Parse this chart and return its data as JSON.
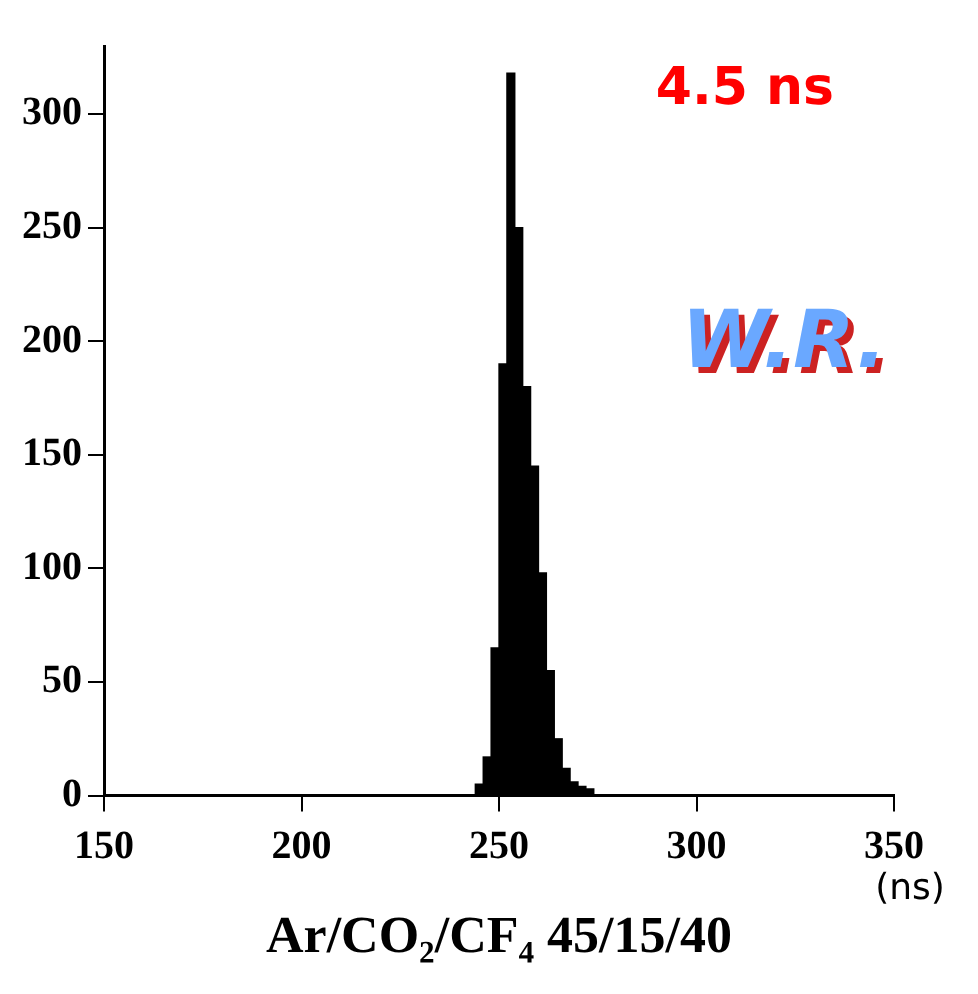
{
  "chart_data": {
    "type": "histogram",
    "xlabel": "Ar/CO₂/CF₄ 45/15/40",
    "annotations": [
      "4.5 ns",
      "W.R.",
      "(ns)"
    ],
    "bins": [
      244,
      246,
      248,
      250,
      252,
      254,
      256,
      258,
      260,
      262,
      264,
      266,
      268,
      270,
      272,
      274
    ],
    "values": [
      5,
      17,
      65,
      190,
      318,
      250,
      180,
      145,
      98,
      55,
      25,
      12,
      6,
      4,
      3
    ],
    "color": "#000000",
    "xlim": [
      150,
      350
    ],
    "xticks": [
      150,
      200,
      250,
      300,
      350
    ],
    "ylim": [
      0,
      330
    ],
    "yticks": [
      0,
      50,
      100,
      150,
      200,
      250,
      300
    ],
    "grid": false,
    "legend": false
  }
}
